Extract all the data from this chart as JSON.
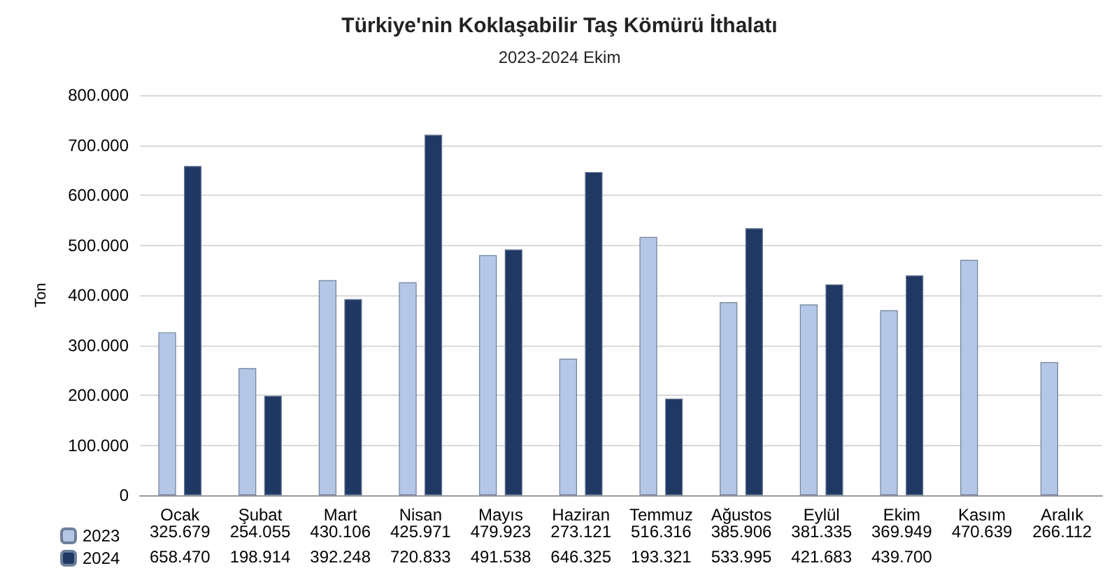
{
  "chart_data": {
    "type": "bar",
    "title": "Türkiye'nin Koklaşabilir Taş Kömürü İthalatı",
    "subtitle": "2023-2024 Ekim",
    "ylabel": "Ton",
    "categories": [
      "Ocak",
      "Şubat",
      "Mart",
      "Nisan",
      "Mayıs",
      "Haziran",
      "Temmuz",
      "Ağustos",
      "Eylül",
      "Ekim",
      "Kasım",
      "Aralık"
    ],
    "series": [
      {
        "name": "2023",
        "color": "#b4c7e7",
        "values": [
          325679,
          254055,
          430106,
          425971,
          479923,
          273121,
          516316,
          385906,
          381335,
          369949,
          470639,
          266112
        ],
        "value_labels": [
          "325.679",
          "254.055",
          "430.106",
          "425.971",
          "479.923",
          "273.121",
          "516.316",
          "385.906",
          "381.335",
          "369.949",
          "470.639",
          "266.112"
        ]
      },
      {
        "name": "2024",
        "color": "#203864",
        "values": [
          658470,
          198914,
          392248,
          720833,
          491538,
          646325,
          193321,
          533995,
          421683,
          439700,
          null,
          null
        ],
        "value_labels": [
          "658.470",
          "198.914",
          "392.248",
          "720.833",
          "491.538",
          "646.325",
          "193.321",
          "533.995",
          "421.683",
          "439.700",
          null,
          null
        ]
      }
    ],
    "ylim": [
      0,
      800000
    ],
    "yticks": [
      0,
      {
        "value": 100000,
        "label": "100.000"
      },
      {
        "value": 200000,
        "label": "200.000"
      },
      {
        "value": 300000,
        "label": "300.000"
      },
      {
        "value": 400000,
        "label": "400.000"
      },
      {
        "value": 500000,
        "label": "500.000"
      },
      {
        "value": 600000,
        "label": "600.000"
      },
      {
        "value": 700000,
        "label": "700.000"
      },
      {
        "value": 800000,
        "label": "800.000"
      }
    ],
    "grid": true,
    "legend": "bottom left"
  }
}
